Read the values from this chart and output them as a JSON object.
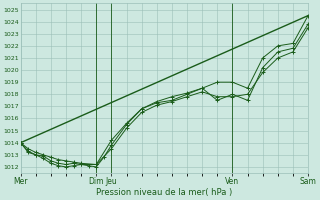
{
  "xlabel": "Pression niveau de la mer( hPa )",
  "ylim": [
    1011.5,
    1025.5
  ],
  "xlim": [
    0,
    20
  ],
  "yticks": [
    1012,
    1013,
    1014,
    1015,
    1016,
    1017,
    1018,
    1019,
    1020,
    1021,
    1022,
    1023,
    1024,
    1025
  ],
  "bg_color": "#cde8e0",
  "grid_color": "#9bbfb8",
  "line_color": "#1a5c1a",
  "day_labels": [
    "Mer",
    "",
    "",
    "",
    "",
    "Dim",
    "Jeu",
    "",
    "",
    "",
    "",
    "",
    "",
    "",
    "Ven",
    "",
    "",
    "",
    "",
    "Sam"
  ],
  "day_tick_positions": [
    0,
    5,
    6,
    14,
    19
  ],
  "day_tick_labels": [
    "Mer",
    "Dim",
    "Jeu",
    "Ven",
    "Sam"
  ],
  "vline_positions": [
    5,
    6,
    14,
    19
  ],
  "line1_x": [
    0,
    0.5,
    1,
    1.5,
    2,
    2.5,
    3,
    3.5,
    4,
    4.5,
    5,
    5.5,
    6,
    7,
    8,
    9,
    10,
    11,
    12,
    13,
    14,
    15,
    16,
    17,
    18,
    19
  ],
  "line1_y": [
    1014.0,
    1013.3,
    1013.0,
    1012.7,
    1012.3,
    1012.1,
    1012.0,
    1012.1,
    1012.2,
    1012.1,
    1012.0,
    1012.8,
    1013.8,
    1015.5,
    1016.8,
    1017.4,
    1017.8,
    1018.1,
    1018.5,
    1019.0,
    1019.0,
    1018.5,
    1021.0,
    1022.0,
    1022.2,
    1024.5
  ],
  "line2_x": [
    0,
    0.5,
    1,
    1.5,
    2,
    2.5,
    3,
    3.5,
    4,
    5,
    6,
    7,
    8,
    9,
    10,
    11,
    12,
    13,
    14,
    15,
    16,
    17,
    18,
    19
  ],
  "line2_y": [
    1014.0,
    1013.2,
    1013.0,
    1012.9,
    1012.5,
    1012.3,
    1012.2,
    1012.3,
    1012.2,
    1012.2,
    1014.2,
    1015.6,
    1016.8,
    1017.3,
    1017.5,
    1018.0,
    1018.5,
    1017.5,
    1018.0,
    1017.5,
    1020.2,
    1021.5,
    1021.8,
    1023.8
  ],
  "line3_x": [
    0,
    0.5,
    1,
    1.5,
    2,
    2.5,
    3,
    3.5,
    4,
    5,
    6,
    7,
    8,
    9,
    10,
    11,
    12,
    13,
    14,
    15,
    16,
    17,
    18,
    19
  ],
  "line3_y": [
    1014.0,
    1013.5,
    1013.2,
    1013.0,
    1012.8,
    1012.6,
    1012.5,
    1012.4,
    1012.3,
    1012.2,
    1013.5,
    1015.2,
    1016.5,
    1017.1,
    1017.4,
    1017.8,
    1018.2,
    1017.8,
    1017.8,
    1018.0,
    1019.8,
    1021.0,
    1021.5,
    1023.5
  ],
  "line4_x": [
    0,
    19
  ],
  "line4_y": [
    1014.0,
    1024.5
  ],
  "total_x": 19
}
